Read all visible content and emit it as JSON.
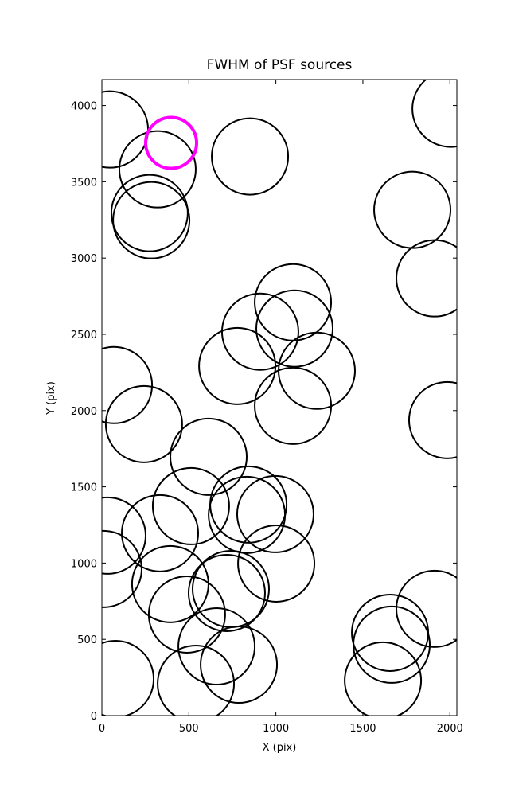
{
  "chart_data": {
    "type": "scatter",
    "title": "FWHM of PSF sources",
    "x_label": "X (pix)",
    "y_label": "Y (pix)",
    "xlim": [
      0,
      2040
    ],
    "ylim": [
      0,
      4170
    ],
    "xticks": [
      0,
      500,
      1000,
      1500,
      2000
    ],
    "yticks": [
      0,
      500,
      1000,
      1500,
      2000,
      2500,
      3000,
      3500,
      4000
    ],
    "series": [
      {
        "color": "#000000",
        "x": [
          46,
          320,
          274,
          284,
          851,
          2004,
          1784,
          1912,
          1098,
          910,
          1107,
          778,
          1235,
          1098,
          69,
          242,
          613,
          1985,
          512,
          842,
          833,
          997,
          32,
          334,
          9,
          1002,
          393,
          489,
          741,
          718,
          659,
          1656,
          1665,
          1912,
          787,
          540,
          78,
          1615
        ],
        "values": [
          3843,
          3582,
          3295,
          3248,
          3666,
          3979,
          3316,
          2867,
          2710,
          2517,
          2538,
          2292,
          2261,
          2031,
          2167,
          1911,
          1697,
          1937,
          1373,
          1384,
          1316,
          1321,
          1180,
          1196,
          961,
          997,
          862,
          663,
          830,
          804,
          454,
          543,
          465,
          700,
          334,
          209,
          240,
          230
        ]
      },
      {
        "color": "#ff00ff",
        "x": [
          398
        ],
        "values": [
          3755
        ]
      }
    ]
  }
}
